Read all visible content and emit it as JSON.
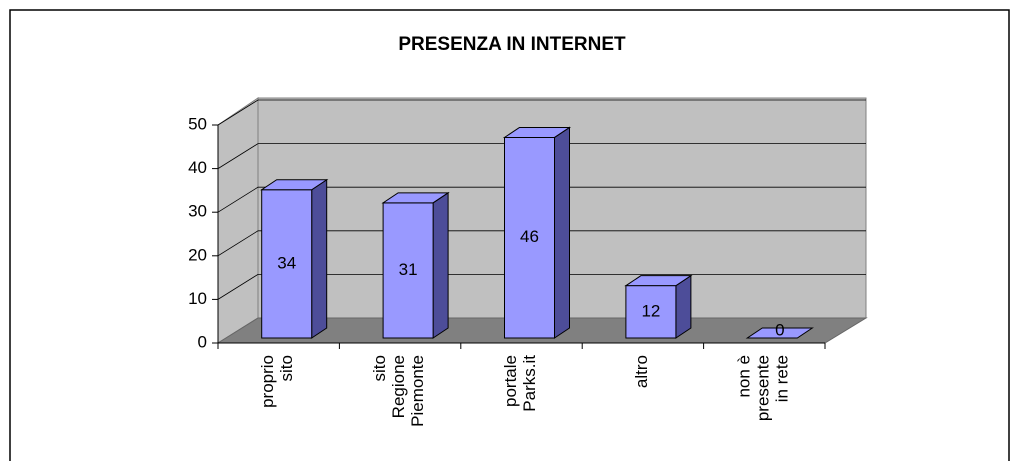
{
  "chart_data": {
    "type": "bar3d",
    "title": "PRESENZA IN INTERNET",
    "categories": [
      "proprio\nsito",
      "sito\nRegione\nPiemonte",
      "portale\nParks.it",
      "altro",
      "non è\npresente\nin rete"
    ],
    "values": [
      34,
      31,
      46,
      12,
      0
    ],
    "color": "#9999ff",
    "ylim": [
      0,
      50
    ],
    "yticks": [
      0,
      10,
      20,
      30,
      40,
      50
    ],
    "grid": true
  }
}
